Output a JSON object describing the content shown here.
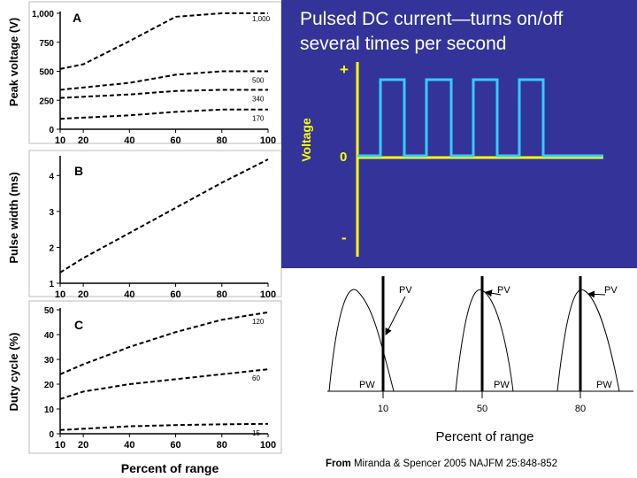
{
  "slide_panel": {
    "title_line1": "Pulsed DC current—turns on/off",
    "title_line2": "several times per second",
    "ylabel": "Voltage",
    "plus_label": "+",
    "zero_label": "0",
    "minus_label": "-",
    "colors": {
      "background": "#333399",
      "pulse": "#33ccff",
      "axis": "#ffff00",
      "text": "#ffffff"
    }
  },
  "credit": {
    "prefix": "From",
    "text": "Miranda & Spencer 2005 NAJFM 25:848-852"
  },
  "chart_data": [
    {
      "type": "line",
      "panel": "A",
      "ylabel": "Peak voltage (V)",
      "xlabel": "",
      "x_ticks": [
        "10",
        "20",
        "40",
        "60",
        "80",
        "100"
      ],
      "y_ticks": [
        "0",
        "250",
        "500",
        "750",
        "1,000"
      ],
      "series": [
        {
          "name": "1,000",
          "points": [
            [
              10,
              520
            ],
            [
              20,
              560
            ],
            [
              40,
              760
            ],
            [
              60,
              970
            ],
            [
              80,
              1000
            ],
            [
              100,
              1000
            ]
          ]
        },
        {
          "name": "500",
          "points": [
            [
              10,
              340
            ],
            [
              20,
              360
            ],
            [
              40,
              400
            ],
            [
              60,
              470
            ],
            [
              80,
              500
            ],
            [
              100,
              500
            ]
          ]
        },
        {
          "name": "340",
          "points": [
            [
              10,
              270
            ],
            [
              20,
              280
            ],
            [
              40,
              300
            ],
            [
              60,
              330
            ],
            [
              80,
              340
            ],
            [
              100,
              340
            ]
          ]
        },
        {
          "name": "170",
          "points": [
            [
              10,
              90
            ],
            [
              20,
              100
            ],
            [
              40,
              120
            ],
            [
              60,
              150
            ],
            [
              80,
              170
            ],
            [
              100,
              170
            ]
          ]
        }
      ]
    },
    {
      "type": "line",
      "panel": "B",
      "ylabel": "Pulse width (ms)",
      "xlabel": "",
      "x_ticks": [
        "10",
        "20",
        "40",
        "60",
        "80",
        "100"
      ],
      "y_ticks": [
        "1",
        "2",
        "3",
        "4"
      ],
      "series": [
        {
          "name": "pulse width",
          "points": [
            [
              10,
              1.3
            ],
            [
              20,
              1.7
            ],
            [
              40,
              2.4
            ],
            [
              60,
              3.1
            ],
            [
              80,
              3.8
            ],
            [
              100,
              4.45
            ]
          ]
        }
      ]
    },
    {
      "type": "line",
      "panel": "C",
      "ylabel": "Duty cycle (%)",
      "xlabel": "Percent of range",
      "x_ticks": [
        "10",
        "20",
        "40",
        "60",
        "80",
        "100"
      ],
      "y_ticks": [
        "0",
        "10",
        "20",
        "30",
        "40",
        "50"
      ],
      "series": [
        {
          "name": "120",
          "points": [
            [
              10,
              24
            ],
            [
              20,
              28
            ],
            [
              40,
              35
            ],
            [
              60,
              41
            ],
            [
              80,
              46
            ],
            [
              100,
              49
            ]
          ]
        },
        {
          "name": "60",
          "points": [
            [
              10,
              14
            ],
            [
              20,
              17
            ],
            [
              40,
              20
            ],
            [
              60,
              22
            ],
            [
              80,
              24
            ],
            [
              100,
              26
            ]
          ]
        },
        {
          "name": "15",
          "points": [
            [
              10,
              1.5
            ],
            [
              20,
              2
            ],
            [
              40,
              3
            ],
            [
              60,
              3.5
            ],
            [
              80,
              3.8
            ],
            [
              100,
              4
            ]
          ]
        }
      ]
    },
    {
      "type": "line",
      "panel": "waveforms",
      "xlabel": "Percent of range",
      "x_ticks": [
        "10",
        "50",
        "80"
      ],
      "waveform_labels": {
        "peak": "PV",
        "width": "PW"
      }
    }
  ]
}
